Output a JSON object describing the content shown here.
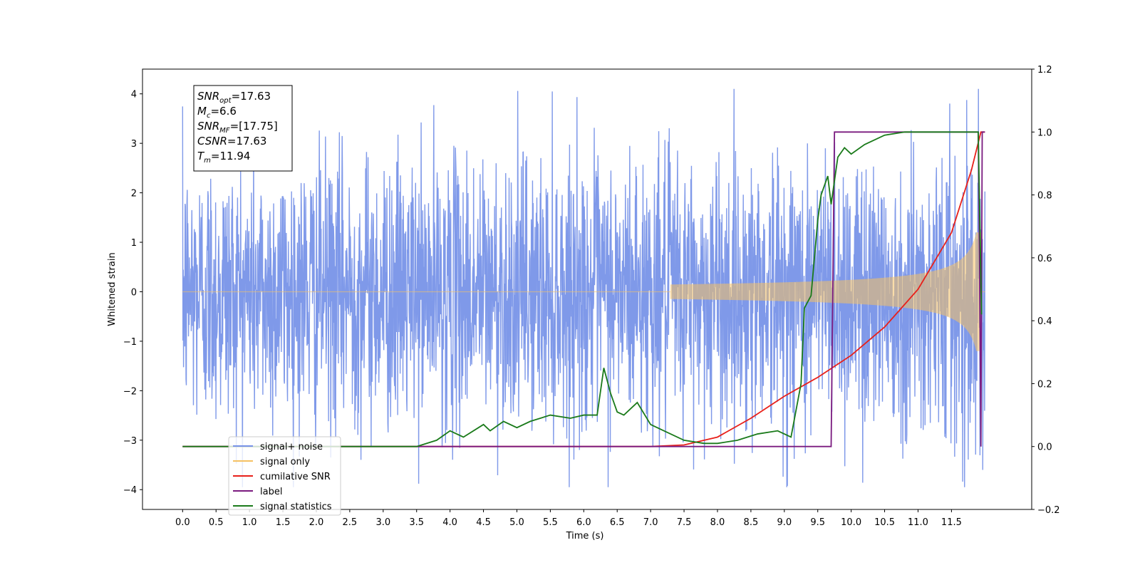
{
  "chart_data": {
    "type": "line",
    "title": "",
    "xlabel": "Time (s)",
    "ylabel": "Whitened strain",
    "xlim": [
      -0.6,
      12.7
    ],
    "ylim": [
      -4.4,
      4.5
    ],
    "y2lim": [
      -0.2,
      1.2
    ],
    "grid": false,
    "legend_placement": "lower-left",
    "x_ticks": [
      "0.0",
      "0.5",
      "1.0",
      "1.5",
      "2.0",
      "2.5",
      "3.0",
      "3.5",
      "4.0",
      "4.5",
      "5.0",
      "5.5",
      "6.0",
      "6.5",
      "7.0",
      "7.5",
      "8.0",
      "8.5",
      "9.0",
      "9.5",
      "10.0",
      "10.5",
      "11.0",
      "11.5"
    ],
    "y_ticks": [
      "4",
      "3",
      "2",
      "1",
      "0",
      "−1",
      "−2",
      "−3",
      "−4"
    ],
    "y2_ticks": [
      "1.2",
      "1.0",
      "0.8",
      "0.6",
      "0.4",
      "0.2",
      "0.0",
      "−0.2"
    ],
    "annotation": {
      "lines": [
        {
          "sym": "SNR",
          "sub": "opt",
          "value": "=17.63"
        },
        {
          "sym": "M",
          "sub": "c",
          "value": "=6.6"
        },
        {
          "sym": "SNR",
          "sub": "MF",
          "value": "=[17.75]"
        },
        {
          "sym": "CSNR",
          "sub": "",
          "value": "=17.63"
        },
        {
          "sym": "T",
          "sub": "m",
          "value": "=11.94"
        }
      ]
    },
    "legend": [
      {
        "label": "signal+ noise",
        "color": "#7893e8"
      },
      {
        "label": "signal only",
        "color": "#f5c163"
      },
      {
        "label": "cumilative SNR",
        "color": "#e8201a"
      },
      {
        "label": "label",
        "color": "#7a1a7f"
      },
      {
        "label": "signal statistics",
        "color": "#1a7a1a"
      }
    ],
    "series": [
      {
        "name": "signal+ noise",
        "axis": "left",
        "color": "#7893e8",
        "style": "noise",
        "t_start": 0.0,
        "t_end": 12.0,
        "envelope_peak": 4.1,
        "envelope_trough": -3.95
      },
      {
        "name": "signal only",
        "axis": "left",
        "color": "#f5c163",
        "style": "chirp",
        "t_start": 0.0,
        "t_end": 12.0,
        "onset": 7.3,
        "amplitude_at_9": 0.25,
        "amplitude_at_11": 0.5,
        "peak_amplitude": 1.2,
        "merger_time": 11.94
      },
      {
        "name": "cumilative SNR",
        "axis": "right",
        "x": [
          0,
          7.0,
          7.5,
          8.0,
          8.5,
          9.0,
          9.5,
          10.0,
          10.5,
          11.0,
          11.5,
          11.8,
          11.94,
          12.0
        ],
        "y": [
          0,
          0,
          0.005,
          0.03,
          0.09,
          0.16,
          0.22,
          0.29,
          0.38,
          0.5,
          0.68,
          0.88,
          1.0,
          1.0
        ]
      },
      {
        "name": "label",
        "axis": "right",
        "x": [
          0,
          9.7,
          9.75,
          11.9,
          11.92,
          11.94,
          11.96,
          12.0
        ],
        "y": [
          0,
          0,
          1.0,
          1.0,
          0.6,
          0.0,
          1.0,
          1.0
        ]
      },
      {
        "name": "signal statistics",
        "axis": "right",
        "x": [
          0,
          3.5,
          3.8,
          4.0,
          4.2,
          4.5,
          4.6,
          4.8,
          5.0,
          5.2,
          5.5,
          5.8,
          6.0,
          6.2,
          6.3,
          6.4,
          6.5,
          6.6,
          6.8,
          7.0,
          7.2,
          7.5,
          7.8,
          8.0,
          8.3,
          8.6,
          8.9,
          9.1,
          9.25,
          9.3,
          9.4,
          9.5,
          9.55,
          9.65,
          9.7,
          9.8,
          9.9,
          10.0,
          10.2,
          10.5,
          10.8,
          11.0,
          11.5,
          11.9,
          11.95
        ],
        "y": [
          0,
          0.0,
          0.02,
          0.05,
          0.03,
          0.07,
          0.05,
          0.08,
          0.06,
          0.08,
          0.1,
          0.09,
          0.1,
          0.1,
          0.25,
          0.17,
          0.11,
          0.1,
          0.14,
          0.07,
          0.05,
          0.02,
          0.01,
          0.01,
          0.02,
          0.04,
          0.05,
          0.03,
          0.2,
          0.44,
          0.48,
          0.72,
          0.8,
          0.86,
          0.77,
          0.92,
          0.95,
          0.93,
          0.96,
          0.99,
          1.0,
          1.0,
          1.0,
          1.0,
          0.42
        ]
      }
    ]
  }
}
